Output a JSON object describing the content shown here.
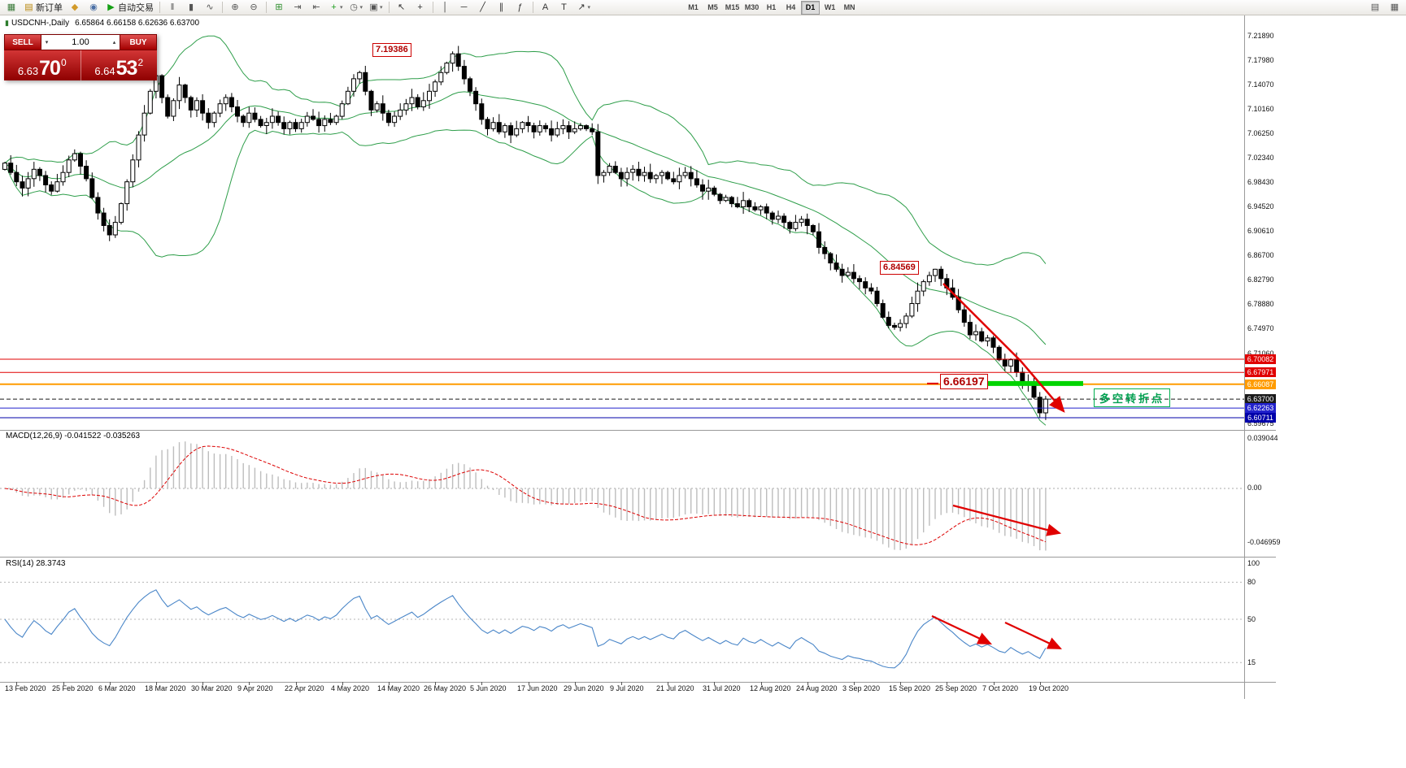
{
  "icons": {
    "caret_down": "▾",
    "caret_up": "▴"
  },
  "colors": {
    "bands": "#2e9e4a",
    "candle": "#000000",
    "macd_hist": "#bdbdbd",
    "signal": "#dd0000",
    "rsi": "#4a86c8",
    "annot_red": "#e00000",
    "annot_green": "#00d400",
    "cn_green": "#00a050"
  },
  "toolbar": {
    "items": [
      {
        "name": "chart-window-icon",
        "glyph": "▦",
        "color": "#3a7b3a"
      },
      {
        "name": "new-order-button",
        "glyph": "▤",
        "color": "#b8860b",
        "label": "新订单"
      },
      {
        "name": "mql5-market-icon",
        "glyph": "◆",
        "color": "#d29a2a"
      },
      {
        "name": "profile-icon",
        "glyph": "◉",
        "color": "#4a6fa5"
      },
      {
        "name": "autotrading-button",
        "glyph": "▶",
        "color": "#15a015",
        "label": "自动交易"
      },
      {
        "type": "sep"
      },
      {
        "name": "bar-chart-icon",
        "glyph": "‖",
        "color": "#555555"
      },
      {
        "name": "candlestick-chart-icon",
        "glyph": "▮",
        "color": "#555555"
      },
      {
        "name": "line-chart-icon",
        "glyph": "∿",
        "color": "#555555"
      },
      {
        "type": "sep"
      },
      {
        "name": "zoom-in-icon",
        "glyph": "⊕",
        "color": "#555555"
      },
      {
        "name": "zoom-out-icon",
        "glyph": "⊖",
        "color": "#555555"
      },
      {
        "type": "sep"
      },
      {
        "name": "tile-windows-icon",
        "glyph": "⊞",
        "color": "#2f8f2f"
      },
      {
        "name": "auto-scroll-icon",
        "glyph": "⇥",
        "color": "#555555"
      },
      {
        "name": "chart-shift-icon",
        "glyph": "⇤",
        "color": "#555555"
      },
      {
        "name": "indicators-icon",
        "glyph": "+",
        "color": "#1f9e1f",
        "caret": true
      },
      {
        "name": "periods-icon",
        "glyph": "◷",
        "color": "#555555",
        "caret": true
      },
      {
        "name": "templates-icon",
        "glyph": "▣",
        "color": "#555555",
        "caret": true
      },
      {
        "type": "sep"
      },
      {
        "name": "cursor-icon",
        "glyph": "↖",
        "color": "#333333"
      },
      {
        "name": "crosshair-icon",
        "glyph": "+",
        "color": "#333333"
      },
      {
        "type": "sep"
      },
      {
        "name": "vertical-line-icon",
        "glyph": "│",
        "color": "#333333"
      },
      {
        "name": "horizontal-line-icon",
        "glyph": "─",
        "color": "#333333"
      },
      {
        "name": "trendline-icon",
        "glyph": "╱",
        "color": "#333333"
      },
      {
        "name": "channel-icon",
        "glyph": "∥",
        "color": "#333333"
      },
      {
        "name": "fibonacci-icon",
        "glyph": "ƒ",
        "color": "#333333"
      },
      {
        "type": "sep"
      },
      {
        "name": "text-icon",
        "glyph": "A",
        "color": "#333333"
      },
      {
        "name": "text-label-icon",
        "glyph": "T",
        "color": "#333333"
      },
      {
        "name": "arrows-icon",
        "glyph": "↗",
        "color": "#333333",
        "caret": true
      },
      {
        "type": "spacer"
      },
      {
        "type": "tf",
        "label": "M1"
      },
      {
        "type": "tf",
        "label": "M5"
      },
      {
        "type": "tf",
        "label": "M15"
      },
      {
        "type": "tf",
        "label": "M30"
      },
      {
        "type": "tf",
        "label": "H1"
      },
      {
        "type": "tf",
        "label": "H4"
      },
      {
        "type": "tf",
        "label": "D1",
        "active": true
      },
      {
        "type": "tf",
        "label": "W1"
      },
      {
        "type": "tf",
        "label": "MN"
      }
    ],
    "right_items": [
      {
        "name": "new-chart-icon",
        "glyph": "▤",
        "color": "#555555"
      },
      {
        "name": "chart-list-icon",
        "glyph": "▦",
        "color": "#555555"
      }
    ]
  },
  "chart": {
    "symbol": "USDCNH-,Daily",
    "ohlc": "6.65864 6.66158 6.62636 6.63700"
  },
  "trade_panel": {
    "sell_label": "SELL",
    "buy_label": "BUY",
    "volume": "1.00",
    "sell_big": "6.63",
    "sell_pips": "70",
    "sell_sup": "0",
    "buy_big": "6.64",
    "buy_pips": "53",
    "buy_sup": "2"
  },
  "annotations": {
    "peak_price_label": "7.19386",
    "swing_price_label": "6.84569",
    "entry_price_label": "6.66197",
    "turning_point_label": "多空转折点"
  },
  "y_axis_labels": [
    "7.21890",
    "7.17980",
    "7.14070",
    "7.10160",
    "7.06250",
    "7.02340",
    "6.98430",
    "6.94520",
    "6.90610",
    "6.86700",
    "6.82790",
    "6.78880",
    "6.74970",
    "6.71060",
    "6.59675"
  ],
  "price_tags": [
    {
      "name": "resistance-1",
      "value": "6.70082",
      "price": 6.70082,
      "color": "#e00000",
      "line": "solid"
    },
    {
      "name": "resistance-2",
      "value": "6.67971",
      "price": 6.67971,
      "color": "#e00000",
      "line": "solid"
    },
    {
      "name": "pivot",
      "value": "6.66087",
      "price": 6.66087,
      "color": "#ff9c00",
      "line": "solid",
      "thick": true
    },
    {
      "name": "current-price",
      "value": "6.63700",
      "price": 6.637,
      "color": "#1a1a1a",
      "line": "dashed"
    },
    {
      "name": "support-1",
      "value": "6.62263",
      "price": 6.62263,
      "color": "#2222cc",
      "line": "solid"
    },
    {
      "name": "support-2",
      "value": "6.60711",
      "price": 6.60711,
      "color": "#0000aa",
      "line": "solid"
    }
  ],
  "x_axis_dates": [
    "13 Feb 2020",
    "25 Feb 2020",
    "6 Mar 2020",
    "18 Mar 2020",
    "30 Mar 2020",
    "9 Apr 2020",
    "22 Apr 2020",
    "4 May 2020",
    "14 May 2020",
    "26 May 2020",
    "5 Jun 2020",
    "17 Jun 2020",
    "29 Jun 2020",
    "9 Jul 2020",
    "21 Jul 2020",
    "31 Jul 2020",
    "12 Aug 2020",
    "24 Aug 2020",
    "3 Sep 2020",
    "15 Sep 2020",
    "25 Sep 2020",
    "7 Oct 2020",
    "19 Oct 2020"
  ],
  "macd": {
    "name": "MACD(12,26,9)",
    "values": "-0.041522 -0.035263",
    "axis": [
      "0.039044",
      "0.00",
      "-0.046959"
    ]
  },
  "rsi": {
    "name": "RSI(14)",
    "value": "28.3743",
    "axis": [
      "100",
      "80",
      "50",
      "15"
    ],
    "level_lines": [
      80,
      50,
      15
    ]
  },
  "chart_data": {
    "type": "candlestick",
    "symbol": "USDCNH-",
    "period": "Daily",
    "last_bar": {
      "open": 6.65864,
      "high": 6.66158,
      "low": 6.62636,
      "close": 6.637
    },
    "y_max": 7.2189,
    "y_min": 6.5967,
    "first_open": 7.005,
    "closes": [
      7.015,
      7.0,
      6.985,
      6.975,
      6.99,
      7.005,
      6.995,
      6.98,
      6.97,
      6.985,
      7.0,
      7.02,
      7.03,
      7.01,
      6.99,
      6.96,
      6.935,
      6.915,
      6.9,
      6.92,
      6.95,
      6.985,
      7.02,
      7.06,
      7.095,
      7.13,
      7.155,
      7.12,
      7.09,
      7.115,
      7.14,
      7.12,
      7.1,
      7.115,
      7.095,
      7.08,
      7.095,
      7.11,
      7.12,
      7.105,
      7.09,
      7.08,
      7.095,
      7.085,
      7.075,
      7.08,
      7.09,
      7.08,
      7.07,
      7.08,
      7.07,
      7.08,
      7.09,
      7.085,
      7.075,
      7.085,
      7.08,
      7.09,
      7.11,
      7.13,
      7.15,
      7.16,
      7.13,
      7.1,
      7.11,
      7.095,
      7.08,
      7.09,
      7.1,
      7.11,
      7.12,
      7.105,
      7.115,
      7.13,
      7.145,
      7.16,
      7.175,
      7.19,
      7.17,
      7.15,
      7.13,
      7.11,
      7.085,
      7.07,
      7.08,
      7.065,
      7.075,
      7.06,
      7.07,
      7.08,
      7.075,
      7.065,
      7.075,
      7.07,
      7.06,
      7.07,
      7.075,
      7.065,
      7.07,
      7.075,
      7.07,
      7.065,
      6.995,
      7.0,
      7.01,
      7.0,
      6.99,
      7.0,
      7.005,
      6.995,
      7.0,
      6.99,
      6.995,
      7.0,
      6.99,
      6.985,
      6.995,
      7.0,
      6.99,
      6.98,
      6.97,
      6.975,
      6.965,
      6.955,
      6.96,
      6.95,
      6.945,
      6.955,
      6.945,
      6.94,
      6.945,
      6.935,
      6.925,
      6.93,
      6.92,
      6.91,
      6.92,
      6.925,
      6.915,
      6.905,
      6.88,
      6.87,
      6.855,
      6.845,
      6.835,
      6.84,
      6.83,
      6.825,
      6.815,
      6.81,
      6.79,
      6.768,
      6.755,
      6.752,
      6.758,
      6.77,
      6.79,
      6.81,
      6.825,
      6.835,
      6.845,
      6.83,
      6.815,
      6.8,
      6.78,
      6.76,
      6.74,
      6.745,
      6.73,
      6.735,
      6.72,
      6.7,
      6.69,
      6.7,
      6.68,
      6.66,
      6.665,
      6.64,
      6.615,
      6.637
    ],
    "high_overrides": {
      "77": 7.19386,
      "160": 6.84569
    },
    "low_overrides": {
      "153": 6.748,
      "178": 6.60711
    },
    "bollinger": {
      "period": 20,
      "deviation": 2
    },
    "macd_params": {
      "fast": 12,
      "slow": 26,
      "signal": 9
    },
    "rsi_period": 14,
    "turn_price": 6.66197,
    "levels": [
      6.70082,
      6.67971,
      6.66087,
      6.637,
      6.62263,
      6.60711
    ]
  }
}
